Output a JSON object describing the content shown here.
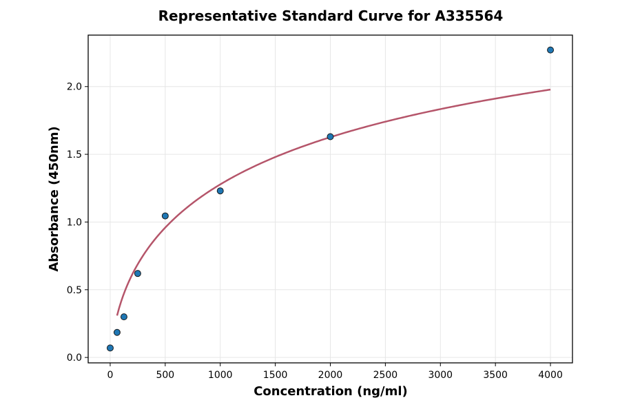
{
  "chart_data": {
    "type": "scatter",
    "title": "Representative Standard Curve for A335564",
    "xlabel": "Concentration (ng/ml)",
    "ylabel": "Absorbance (450nm)",
    "xlim": [
      -200,
      4200
    ],
    "ylim": [
      -0.04,
      2.38
    ],
    "xticks": [
      0,
      500,
      1000,
      1500,
      2000,
      2500,
      3000,
      3500,
      4000
    ],
    "yticks": [
      0.0,
      0.5,
      1.0,
      1.5,
      2.0
    ],
    "xtick_labels": [
      "0",
      "500",
      "1000",
      "1500",
      "2000",
      "2500",
      "3000",
      "3500",
      "4000"
    ],
    "ytick_labels": [
      "0.0",
      "0.5",
      "1.0",
      "1.5",
      "2.0"
    ],
    "grid": true,
    "series": [
      {
        "type": "scatter",
        "color": "#1f77b4",
        "points": [
          {
            "x": 0,
            "y": 0.07
          },
          {
            "x": 62.5,
            "y": 0.185
          },
          {
            "x": 125,
            "y": 0.3
          },
          {
            "x": 250,
            "y": 0.62
          },
          {
            "x": 500,
            "y": 1.045
          },
          {
            "x": 1000,
            "y": 1.23
          },
          {
            "x": 2000,
            "y": 1.63
          },
          {
            "x": 4000,
            "y": 2.27
          }
        ]
      },
      {
        "type": "line",
        "color": "#b5556a",
        "x_range": [
          62.5,
          4000
        ],
        "fit": {
          "model": "4PL",
          "a": -0.0726,
          "b": 0.5917,
          "c": 2130.7,
          "d": 3.3904
        }
      }
    ]
  }
}
